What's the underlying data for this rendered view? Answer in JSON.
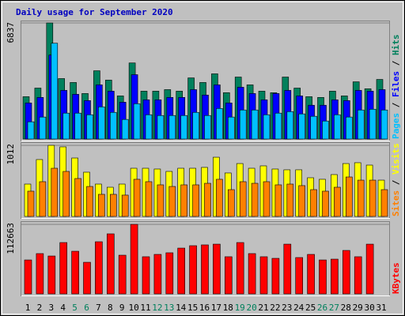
{
  "chart_data": {
    "type": "bar",
    "title": "Daily usage for September 2020",
    "categories": [
      "1",
      "2",
      "3",
      "4",
      "5",
      "6",
      "7",
      "8",
      "9",
      "10",
      "11",
      "12",
      "13",
      "14",
      "15",
      "16",
      "17",
      "18",
      "19",
      "20",
      "21",
      "22",
      "23",
      "24",
      "25",
      "26",
      "27",
      "28",
      "29",
      "30",
      "31"
    ],
    "category_colors": [
      "#000000",
      "#000000",
      "#000000",
      "#000000",
      "#00805c",
      "#00805c",
      "#000000",
      "#000000",
      "#000000",
      "#000000",
      "#000000",
      "#00805c",
      "#00805c",
      "#000000",
      "#000000",
      "#000000",
      "#000000",
      "#000000",
      "#00805c",
      "#00805c",
      "#000000",
      "#000000",
      "#000000",
      "#000000",
      "#000000",
      "#00805c",
      "#00805c",
      "#000000",
      "#000000",
      "#000000",
      "#000000"
    ],
    "legend_separator": " / ",
    "panels": [
      {
        "ylim": [
          0,
          6837
        ],
        "yticks": [
          6837
        ],
        "series": [
          {
            "name": "Hits",
            "color": "#00805c",
            "values": [
              2494,
              3000,
              6837,
              3560,
              3330,
              2680,
              4020,
              3470,
              2540,
              4480,
              2820,
              2820,
              2910,
              2820,
              3600,
              3330,
              3840,
              2730,
              3650,
              3190,
              2820,
              2730,
              3650,
              3000,
              2494,
              2450,
              2820,
              2540,
              3370,
              2960,
              3510
            ]
          },
          {
            "name": "Files",
            "color": "#0000ff",
            "values": [
              2125,
              2450,
              4945,
              2865,
              2635,
              2265,
              3190,
              2820,
              2170,
              3790,
              2310,
              2310,
              2450,
              2450,
              2910,
              2590,
              3190,
              2125,
              3050,
              2680,
              2310,
              2680,
              2865,
              2540,
              1990,
              1990,
              2310,
              2265,
              2865,
              2820,
              2910
            ]
          },
          {
            "name": "Pages",
            "color": "#00c0ff",
            "values": [
              1015,
              1295,
              5640,
              1525,
              1525,
              1430,
              1895,
              1570,
              1155,
              2080,
              1430,
              1385,
              1385,
              1385,
              1570,
              1385,
              1800,
              1295,
              1710,
              1710,
              1430,
              1525,
              1615,
              1480,
              1340,
              1060,
              1430,
              1295,
              1710,
              1755,
              1710
            ]
          }
        ]
      },
      {
        "ylim": [
          0,
          1012
        ],
        "yticks": [
          1012
        ],
        "series": [
          {
            "name": "Visits",
            "color": "#ffff00",
            "values": [
              461,
              810,
              1012,
              990,
              832,
              630,
              461,
              416,
              461,
              686,
              686,
              675,
              641,
              686,
              686,
              698,
              843,
              619,
              753,
              686,
              720,
              675,
              664,
              664,
              551,
              529,
              596,
              753,
              765,
              731,
              517
            ]
          },
          {
            "name": "Sites",
            "color": "#ff8000",
            "values": [
              360,
              495,
              686,
              641,
              540,
              427,
              315,
              315,
              304,
              529,
              495,
              450,
              427,
              450,
              450,
              472,
              529,
              382,
              495,
              472,
              495,
              450,
              461,
              439,
              382,
              360,
              416,
              562,
              517,
              517,
              382
            ]
          }
        ]
      },
      {
        "ylim": [
          0,
          112663
        ],
        "yticks": [
          112663
        ],
        "series": [
          {
            "name": "KBytes",
            "color": "#ff0000",
            "values": [
              55000,
              65300,
              61400,
              83200,
              69100,
              51200,
              84500,
              97300,
              62700,
              112663,
              60200,
              64000,
              66600,
              74200,
              78100,
              79400,
              80600,
              60200,
              83200,
              65300,
              60200,
              57600,
              80600,
              58900,
              64000,
              55000,
              56300,
              70400,
              60200,
              80600,
              null
            ]
          }
        ]
      }
    ]
  }
}
